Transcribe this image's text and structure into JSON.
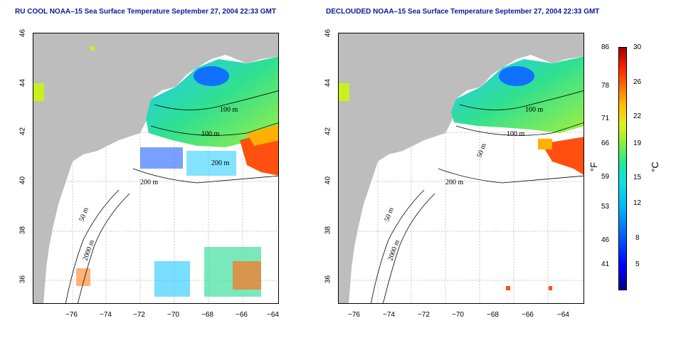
{
  "left_panel": {
    "title": "RU COOL NOAA–15 Sea Surface Temperature September 27, 2004 22:33 GMT",
    "contour_labels": [
      "100 m",
      "100 m",
      "200 m",
      "50 m",
      "200 m",
      "2000 m"
    ]
  },
  "right_panel": {
    "title": "DECLOUDED NOAA–15 Sea Surface Temperature September 27, 2004 22:33 GMT",
    "contour_labels": [
      "100 m",
      "100 m",
      "50 m",
      "200 m",
      "50 m",
      "2000 m"
    ]
  },
  "axes": {
    "x_ticks": [
      "−76",
      "−74",
      "−72",
      "−70",
      "−68",
      "−66",
      "−64"
    ],
    "y_ticks": [
      "46",
      "44",
      "42",
      "40",
      "38",
      "36"
    ]
  },
  "colorbar": {
    "fahrenheit_ticks": [
      "86",
      "78",
      "71",
      "66",
      "59",
      "53",
      "46",
      "41"
    ],
    "celsius_ticks": [
      "30",
      "26",
      "22",
      "19",
      "15",
      "12",
      "8",
      "5"
    ],
    "left_unit": "°F",
    "right_unit": "°C"
  },
  "colors": {
    "land": "#bdbdbd",
    "title_text": "#0a1a9a",
    "warm": "#ff3a00",
    "cool": "#1060ff",
    "mid": "#30e090"
  }
}
